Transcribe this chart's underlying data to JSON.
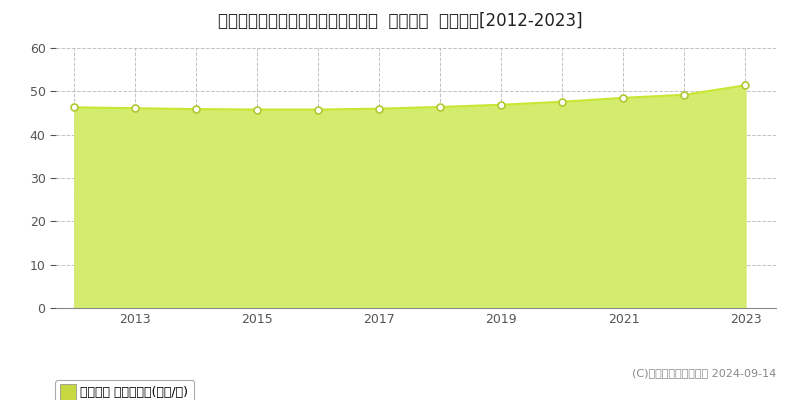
{
  "title": "大阪府堺市西区鳳西町１丁８２番２  地価公示  地価推移[2012-2023]",
  "x_values": [
    2012,
    2013,
    2014,
    2015,
    2016,
    2017,
    2018,
    2019,
    2020,
    2021,
    2022,
    2023
  ],
  "values": [
    46.3,
    46.1,
    45.9,
    45.8,
    45.8,
    46.0,
    46.4,
    46.9,
    47.6,
    48.5,
    49.2,
    51.4
  ],
  "ylim": [
    0,
    60
  ],
  "yticks": [
    0,
    10,
    20,
    30,
    40,
    50,
    60
  ],
  "xlim_left": 2011.7,
  "xlim_right": 2023.5,
  "line_color": "#c8e632",
  "fill_color": "#d4ec6e",
  "marker_facecolor": "#ffffff",
  "marker_edgecolor": "#b0c830",
  "background_color": "#ffffff",
  "grid_color": "#bbbbbb",
  "axis_color": "#555555",
  "title_fontsize": 12,
  "legend_label": "地価公示 平均坪単価(万円/坪)",
  "copyright_text": "(C)土地価格ドットコム 2024-09-14",
  "x_label_ticks": [
    2013,
    2015,
    2017,
    2019,
    2021,
    2023
  ]
}
